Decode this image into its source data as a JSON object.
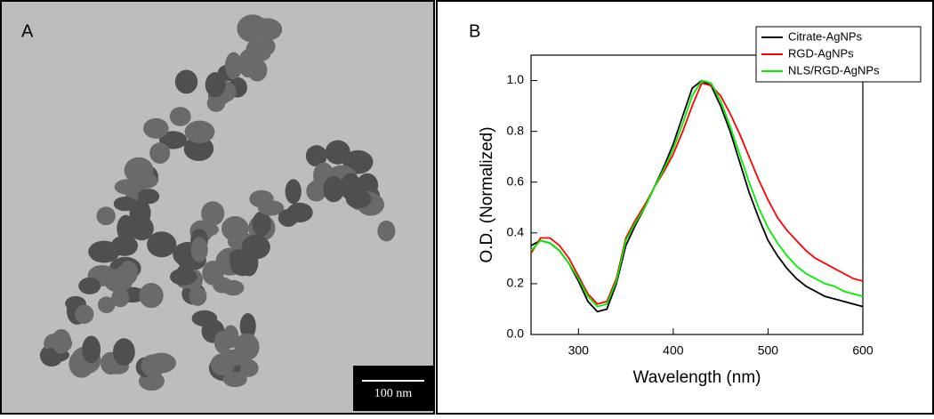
{
  "panel_a": {
    "label": "A",
    "scale_bar": "100 nm"
  },
  "chart_data": {
    "type": "line",
    "panel_label": "B",
    "xlabel": "Wavelength (nm)",
    "ylabel": "O.D. (Normalized)",
    "xlim": [
      250,
      600
    ],
    "xticks": [
      300,
      400,
      500,
      600
    ],
    "ylim": [
      0,
      1.1
    ],
    "yticks": [
      {
        "value": 0,
        "label": "0.0"
      },
      0.2,
      0.4,
      0.6,
      0.8,
      {
        "value": 1,
        "label": "1.0"
      }
    ],
    "legend": "upper right",
    "x": [
      250,
      260,
      270,
      280,
      290,
      300,
      310,
      320,
      330,
      340,
      350,
      360,
      370,
      380,
      390,
      400,
      410,
      420,
      430,
      440,
      450,
      460,
      470,
      480,
      490,
      500,
      510,
      520,
      530,
      540,
      550,
      560,
      570,
      580,
      590,
      600
    ],
    "series": [
      {
        "name": "Citrate-AgNPs",
        "color": "#000000",
        "values": [
          0.35,
          0.37,
          0.36,
          0.33,
          0.28,
          0.21,
          0.13,
          0.09,
          0.1,
          0.2,
          0.35,
          0.43,
          0.5,
          0.58,
          0.66,
          0.75,
          0.86,
          0.97,
          1.0,
          0.98,
          0.9,
          0.8,
          0.68,
          0.56,
          0.46,
          0.37,
          0.31,
          0.26,
          0.22,
          0.19,
          0.17,
          0.15,
          0.14,
          0.13,
          0.12,
          0.11
        ]
      },
      {
        "name": "RGD-AgNPs",
        "color": "#ff0000",
        "values": [
          0.32,
          0.38,
          0.38,
          0.35,
          0.3,
          0.23,
          0.16,
          0.12,
          0.13,
          0.22,
          0.38,
          0.45,
          0.51,
          0.58,
          0.64,
          0.71,
          0.8,
          0.9,
          0.99,
          0.98,
          0.94,
          0.87,
          0.79,
          0.7,
          0.61,
          0.53,
          0.46,
          0.41,
          0.37,
          0.33,
          0.3,
          0.28,
          0.26,
          0.24,
          0.22,
          0.21
        ]
      },
      {
        "name": "NLS/RGD-AgNPs",
        "color": "#00ee00",
        "values": [
          0.33,
          0.37,
          0.36,
          0.33,
          0.28,
          0.22,
          0.15,
          0.11,
          0.12,
          0.21,
          0.37,
          0.44,
          0.5,
          0.58,
          0.65,
          0.73,
          0.83,
          0.94,
          1.0,
          0.99,
          0.92,
          0.82,
          0.71,
          0.6,
          0.5,
          0.42,
          0.36,
          0.31,
          0.27,
          0.24,
          0.22,
          0.2,
          0.19,
          0.17,
          0.16,
          0.15
        ]
      }
    ]
  }
}
